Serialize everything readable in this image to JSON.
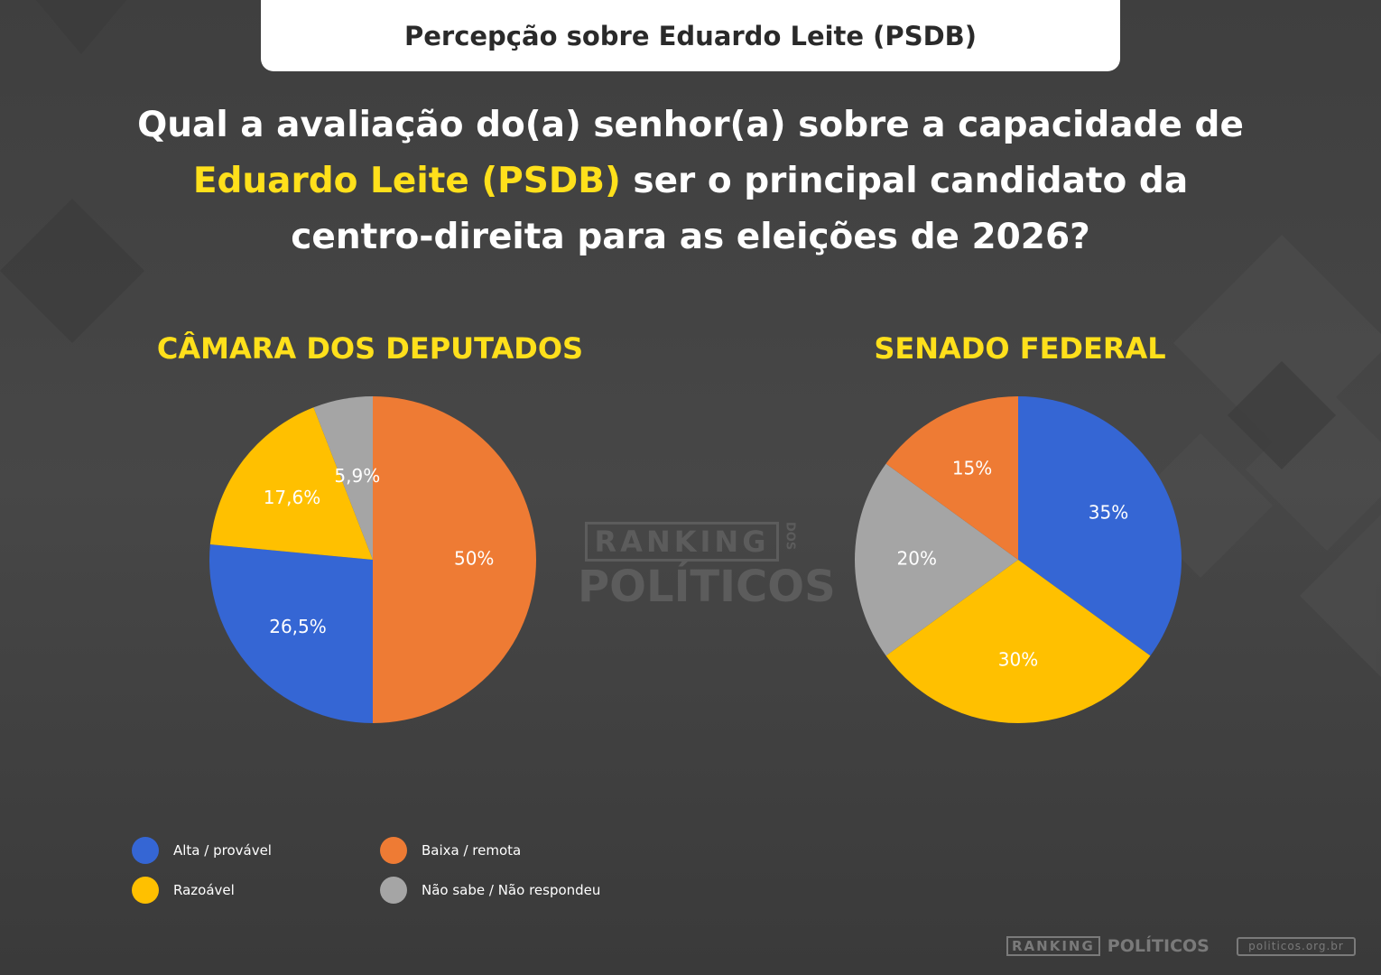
{
  "header": {
    "title": "Percepção sobre Eduardo Leite (PSDB)"
  },
  "question": {
    "part1": "Qual a avaliação do(a) senhor(a) sobre a capacidade de",
    "highlight": "Eduardo Leite (PSDB)",
    "part2": "ser o principal candidato da",
    "part3": "centro-direita para as eleições de 2026?"
  },
  "colors": {
    "background": "#474747",
    "highlight": "#ffe01b",
    "alta": "#3566d4",
    "baixa": "#ee7b34",
    "razoavel": "#ffc000",
    "nao_sabe": "#a5a5a5"
  },
  "legend": [
    {
      "label": "Alta / provável",
      "color": "#3566d4",
      "icon": "dot-icon"
    },
    {
      "label": "Baixa / remota",
      "color": "#ee7b34",
      "icon": "dot-icon"
    },
    {
      "label": "Razoável",
      "color": "#ffc000",
      "icon": "dot-icon"
    },
    {
      "label": "Não sabe / Não respondeu",
      "color": "#a5a5a5",
      "icon": "dot-icon"
    }
  ],
  "chart_data": [
    {
      "type": "pie",
      "title": "CÂMARA DOS DEPUTADOS",
      "slices": [
        {
          "category": "Baixa / remota",
          "value": 50,
          "label": "50%"
        },
        {
          "category": "Alta / provável",
          "value": 26.5,
          "label": "26,5%"
        },
        {
          "category": "Razoável",
          "value": 17.6,
          "label": "17,6%"
        },
        {
          "category": "Não sabe / Não respondeu",
          "value": 5.9,
          "label": "5,9%"
        }
      ]
    },
    {
      "type": "pie",
      "title": "SENADO FEDERAL",
      "slices": [
        {
          "category": "Alta / provável",
          "value": 35,
          "label": "35%"
        },
        {
          "category": "Razoável",
          "value": 30,
          "label": "30%"
        },
        {
          "category": "Não sabe / Não respondeu",
          "value": 20,
          "label": "20%"
        },
        {
          "category": "Baixa / remota",
          "value": 15,
          "label": "15%"
        }
      ]
    }
  ],
  "watermark": {
    "line1": "RANKING",
    "small": "DOS",
    "line2": "POLÍTICOS"
  },
  "footer": {
    "logo_ranking": "RANKING",
    "logo_politicos": "POLÍTICOS",
    "url": "politicos.org.br"
  }
}
